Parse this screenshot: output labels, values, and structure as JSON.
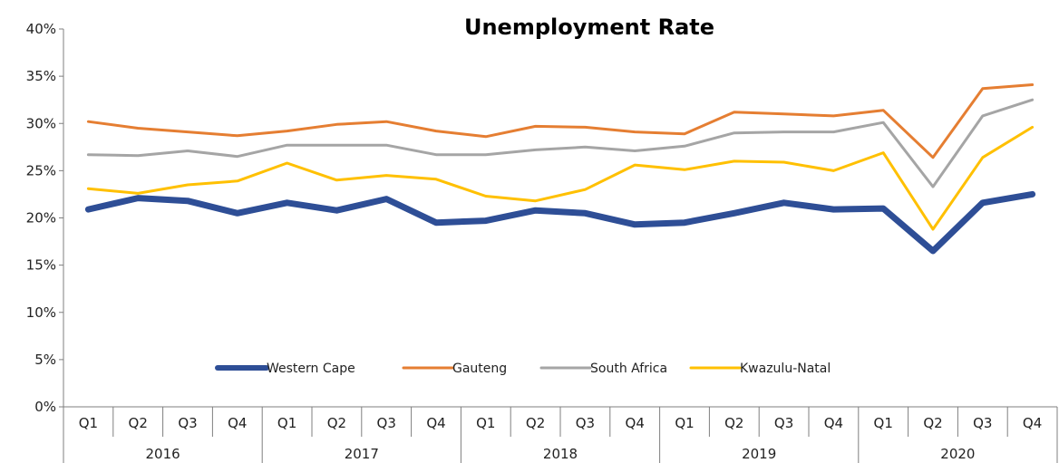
{
  "chart_data": {
    "type": "line",
    "title": "Unemployment Rate",
    "xlabel": "",
    "ylabel": "",
    "ylim": [
      0,
      40
    ],
    "y_ticks": [
      "0%",
      "5%",
      "10%",
      "15%",
      "20%",
      "25%",
      "30%",
      "35%",
      "40%"
    ],
    "y_tick_values": [
      0,
      5,
      10,
      15,
      20,
      25,
      30,
      35,
      40
    ],
    "categories": [
      "Q1",
      "Q2",
      "Q3",
      "Q4",
      "Q1",
      "Q2",
      "Q3",
      "Q4",
      "Q1",
      "Q2",
      "Q3",
      "Q4",
      "Q1",
      "Q2",
      "Q3",
      "Q4",
      "Q1",
      "Q2",
      "Q3",
      "Q4"
    ],
    "years": [
      "2016",
      "2017",
      "2018",
      "2019",
      "2020"
    ],
    "grid": false,
    "legend_position": "bottom-center",
    "series": [
      {
        "name": "Western Cape",
        "color": "#2E4E96",
        "values": [
          20.9,
          22.1,
          21.8,
          20.5,
          21.6,
          20.8,
          22.0,
          19.5,
          19.7,
          20.8,
          20.5,
          19.3,
          19.5,
          20.5,
          21.6,
          20.9,
          21.0,
          16.5,
          21.6,
          22.5
        ]
      },
      {
        "name": "Gauteng",
        "color": "#E57E32",
        "values": [
          30.2,
          29.5,
          29.1,
          28.7,
          29.2,
          29.9,
          30.2,
          29.2,
          28.6,
          29.7,
          29.6,
          29.1,
          28.9,
          31.2,
          31.0,
          30.8,
          31.4,
          26.4,
          33.7,
          34.1
        ]
      },
      {
        "name": "South Africa",
        "color": "#A5A5A5",
        "values": [
          26.7,
          26.6,
          27.1,
          26.5,
          27.7,
          27.7,
          27.7,
          26.7,
          26.7,
          27.2,
          27.5,
          27.1,
          27.6,
          29.0,
          29.1,
          29.1,
          30.1,
          23.3,
          30.8,
          32.5
        ]
      },
      {
        "name": "Kwazulu-Natal",
        "color": "#FFC000",
        "values": [
          23.1,
          22.6,
          23.5,
          23.9,
          25.8,
          24.0,
          24.5,
          24.1,
          22.3,
          21.8,
          23.0,
          25.6,
          25.1,
          26.0,
          25.9,
          25.0,
          26.9,
          18.8,
          26.4,
          29.6
        ]
      }
    ]
  }
}
